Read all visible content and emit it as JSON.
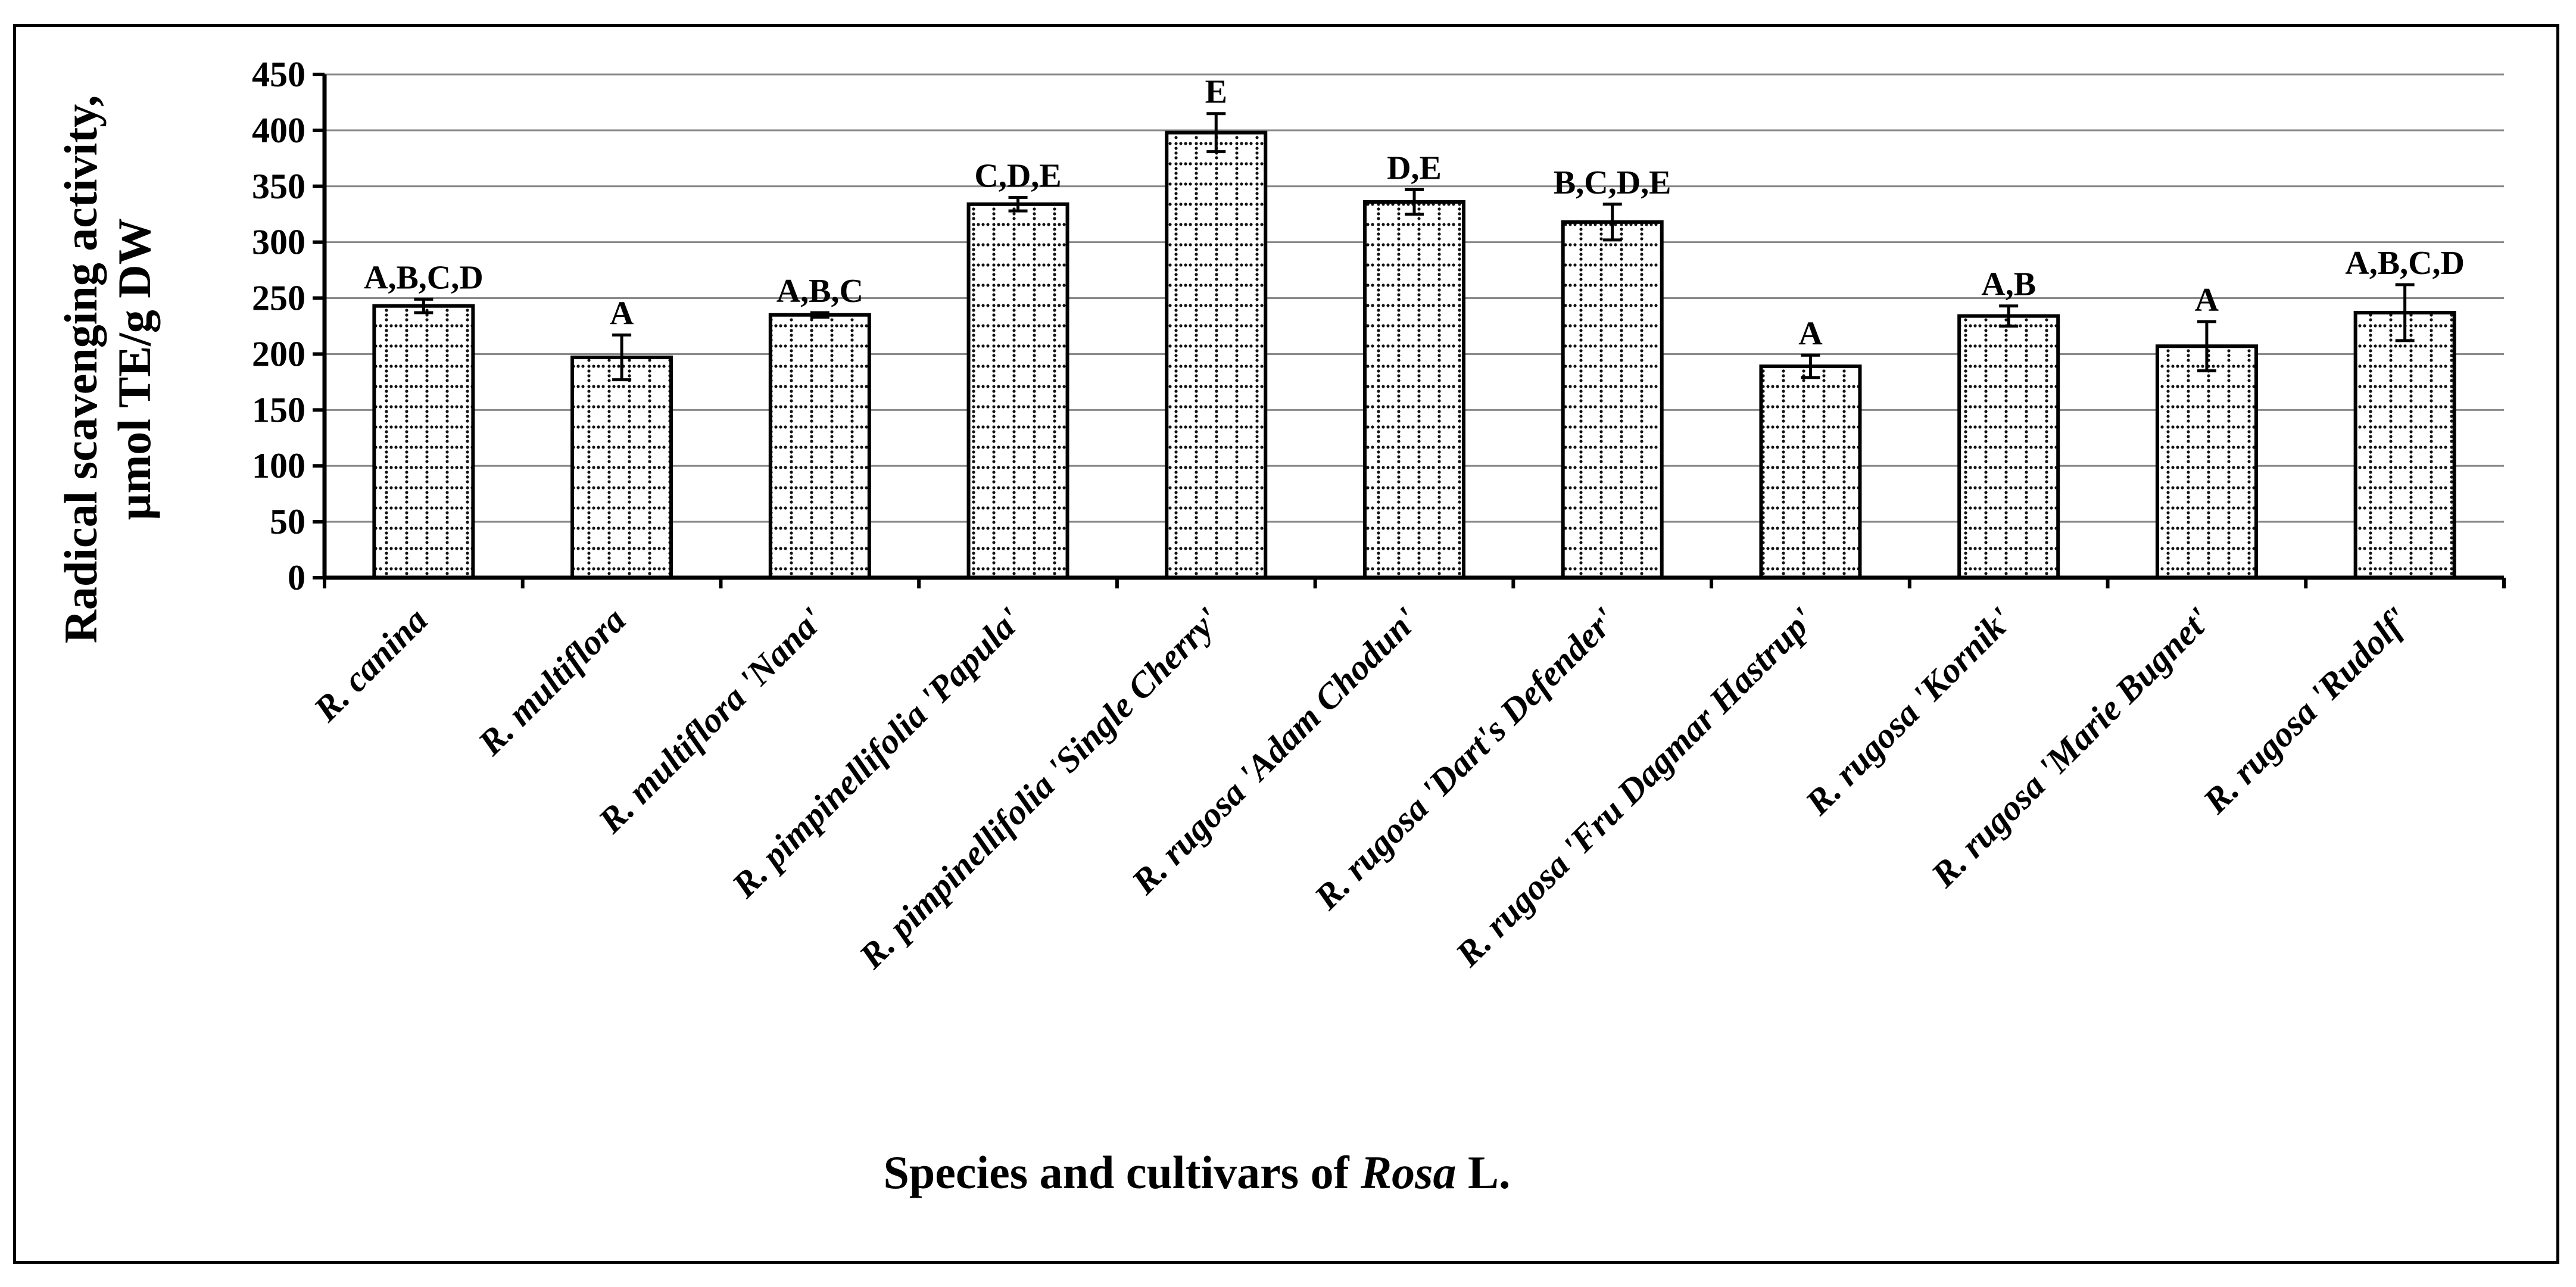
{
  "chart_data": {
    "type": "bar",
    "title": "",
    "xlabel_main": "Species and cultivars of ",
    "xlabel_italic": "Rosa",
    "xlabel_end": " L.",
    "ylabel": [
      "Radical scavenging activity,",
      "µmol TE/g DW"
    ],
    "ylim": [
      0,
      450
    ],
    "yticks": [
      0,
      50,
      100,
      150,
      200,
      250,
      300,
      350,
      400,
      450
    ],
    "grid": true,
    "categories": [
      "R. canina",
      "R. multiflora",
      "R. multiflora 'Nana'",
      "R. pimpinellifolia 'Papula'",
      "R. pimpinellifolia 'Single Cherry'",
      "R. rugosa 'Adam Chodun'",
      "R. rugosa 'Dart's Defender'",
      "R. rugosa 'Fru Dagmar Hastrup'",
      "R. rugosa 'Kornik'",
      "R. rugosa 'Marie Bugnet'",
      "R. rugosa 'Rudolf'"
    ],
    "values": [
      243,
      197,
      235,
      334,
      398,
      336,
      318,
      189,
      234,
      207,
      237
    ],
    "errors": [
      6,
      20,
      2,
      6,
      17,
      11,
      16,
      10,
      9,
      22,
      25
    ],
    "significance": [
      "A,B,C,D",
      "A",
      "A,B,C",
      "C,D,E",
      "E",
      "D,E",
      "B,C,D,E",
      "A",
      "A,B",
      "A",
      "A,B,C,D"
    ]
  }
}
